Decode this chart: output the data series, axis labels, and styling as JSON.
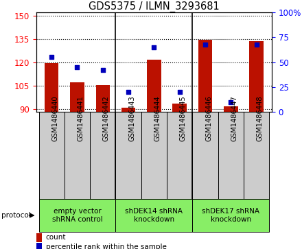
{
  "title": "GDS5375 / ILMN_3293681",
  "samples": [
    "GSM1486440",
    "GSM1486441",
    "GSM1486442",
    "GSM1486443",
    "GSM1486444",
    "GSM1486445",
    "GSM1486446",
    "GSM1486447",
    "GSM1486448"
  ],
  "counts": [
    119.5,
    107.0,
    105.5,
    91.0,
    121.5,
    93.5,
    134.5,
    91.5,
    133.5
  ],
  "percentiles": [
    55,
    45,
    42,
    20,
    65,
    20,
    68,
    10,
    68
  ],
  "ylim_left": [
    88,
    152
  ],
  "ylim_right": [
    0,
    100
  ],
  "yticks_left": [
    90,
    105,
    120,
    135,
    150
  ],
  "yticks_right": [
    0,
    25,
    50,
    75,
    100
  ],
  "protocols": [
    {
      "label": "empty vector\nshRNA control",
      "start": 0,
      "end": 3
    },
    {
      "label": "shDEK14 shRNA\nknockdown",
      "start": 3,
      "end": 6
    },
    {
      "label": "shDEK17 shRNA\nknockdown",
      "start": 6,
      "end": 9
    }
  ],
  "bar_color": "#bb1100",
  "dot_color": "#0000bb",
  "protocol_bg": "#88ee66",
  "sample_bg": "#cccccc",
  "bar_width": 0.55,
  "fig_width": 4.4,
  "fig_height": 3.63
}
